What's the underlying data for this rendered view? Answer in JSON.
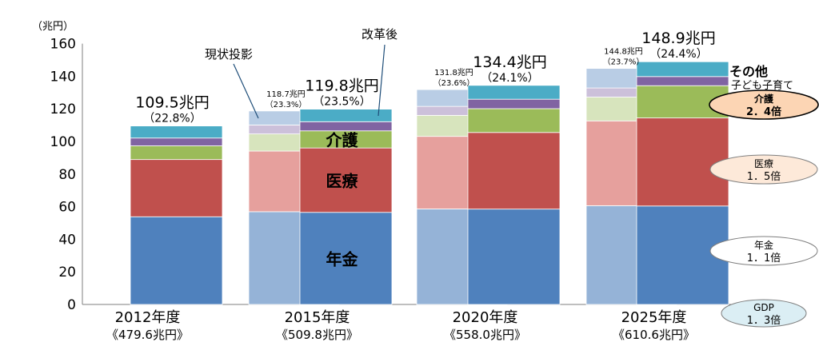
{
  "colors": {
    "pension_reform": "#4f81bd",
    "pension_projection": "#95b3d7",
    "medical_reform": "#c0504d",
    "medical_projection": "#e6a09d",
    "care_reform": "#9bbb59",
    "care_projection": "#d7e4bd",
    "child_reform": "#8064a2",
    "child_projection": "#ccc0da",
    "other_reform": "#4bacc6",
    "other_projection": "#b9cde5",
    "care_bubble": "#fcd5b4",
    "medical_bubble": "#fde9d9",
    "pension_bubble": "#ffffff",
    "gdp_bubble": "#dbeef4"
  },
  "chart_data": {
    "type": "bar",
    "stacked": true,
    "ylim": [
      0,
      160
    ],
    "yticks": [
      "0",
      "20",
      "40",
      "60",
      "80",
      "100",
      "120",
      "140",
      "160"
    ],
    "ylabel": "（兆円）",
    "categories": [
      "2012年度",
      "2015年度",
      "2020年度",
      "2025年度"
    ],
    "gdp_labels": [
      "《479.6兆円》",
      "《509.8兆円》",
      "《558.0兆円》",
      "《610.6兆円》"
    ],
    "segments": [
      "年金",
      "医療",
      "介護",
      "子ども子育て",
      "その他"
    ],
    "reform": [
      {
        "values": [
          53.8,
          35.1,
          8.4,
          4.8,
          7.4
        ],
        "total_label": "109.5兆円",
        "ratio_label": "（22.8%）"
      },
      {
        "values": [
          56.5,
          39.5,
          10.5,
          5.6,
          7.7
        ],
        "total_label": "119.8兆円",
        "ratio_label": "（23.5%）"
      },
      {
        "values": [
          58.5,
          47.0,
          14.6,
          5.8,
          8.5
        ],
        "total_label": "134.4兆円",
        "ratio_label": "（24.1%）"
      },
      {
        "values": [
          60.4,
          54.0,
          19.8,
          5.6,
          9.1
        ],
        "total_label": "148.9兆円",
        "ratio_label": "（24.4%）"
      }
    ],
    "projection": [
      null,
      {
        "values": [
          56.9,
          37.2,
          10.5,
          5.5,
          8.6
        ],
        "total_label": "118.7兆円",
        "ratio_label": "（23.3%）"
      },
      {
        "values": [
          58.6,
          44.5,
          12.9,
          5.5,
          10.3
        ],
        "total_label": "131.8兆円",
        "ratio_label": "（23.6%）"
      },
      {
        "values": [
          60.6,
          52.0,
          14.6,
          5.6,
          12.0
        ],
        "total_label": "144.8兆円",
        "ratio_label": "（23.7%）"
      }
    ],
    "annotations": {
      "projection_label": "現状投影",
      "reform_label": "改革後",
      "segment_labels": [
        "年金",
        "医療",
        "介護"
      ],
      "legend_other": "その他",
      "legend_child": "子ども子育て"
    },
    "bubbles": [
      {
        "title": "介護",
        "ratio": "2．4倍"
      },
      {
        "title": "医療",
        "ratio": "1．5倍"
      },
      {
        "title": "年金",
        "ratio": "1．1倍"
      },
      {
        "title": "GDP",
        "ratio": "1．3倍"
      }
    ]
  }
}
